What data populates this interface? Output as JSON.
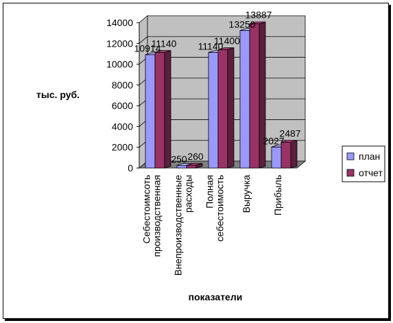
{
  "chart_data": {
    "type": "bar",
    "categories": [
      "Себестоимсоть производственная",
      "Внепроизводственные расходы",
      "Полная себестоимость",
      "Выручка",
      "Прибыль"
    ],
    "series": [
      {
        "name": "план",
        "values": [
          10914,
          250,
          11140,
          13250,
          2027
        ],
        "color": "#9999ff"
      },
      {
        "name": "отчет",
        "values": [
          11140,
          260,
          11400,
          13887,
          2487
        ],
        "color": "#993366"
      }
    ],
    "data_labels": [
      [
        "10914",
        "250",
        "11140",
        "13250",
        "2027"
      ],
      [
        "11140",
        "260",
        "11400",
        "13887",
        "2487"
      ]
    ],
    "ylabel": "тыс. руб.",
    "xlabel": "показатели",
    "ylim": [
      0,
      14000
    ],
    "yticks": [
      "0",
      "2000",
      "4000",
      "6000",
      "8000",
      "10000",
      "12000",
      "14000"
    ],
    "grid": true,
    "legend": "right",
    "style": "3d-clustered-column"
  }
}
